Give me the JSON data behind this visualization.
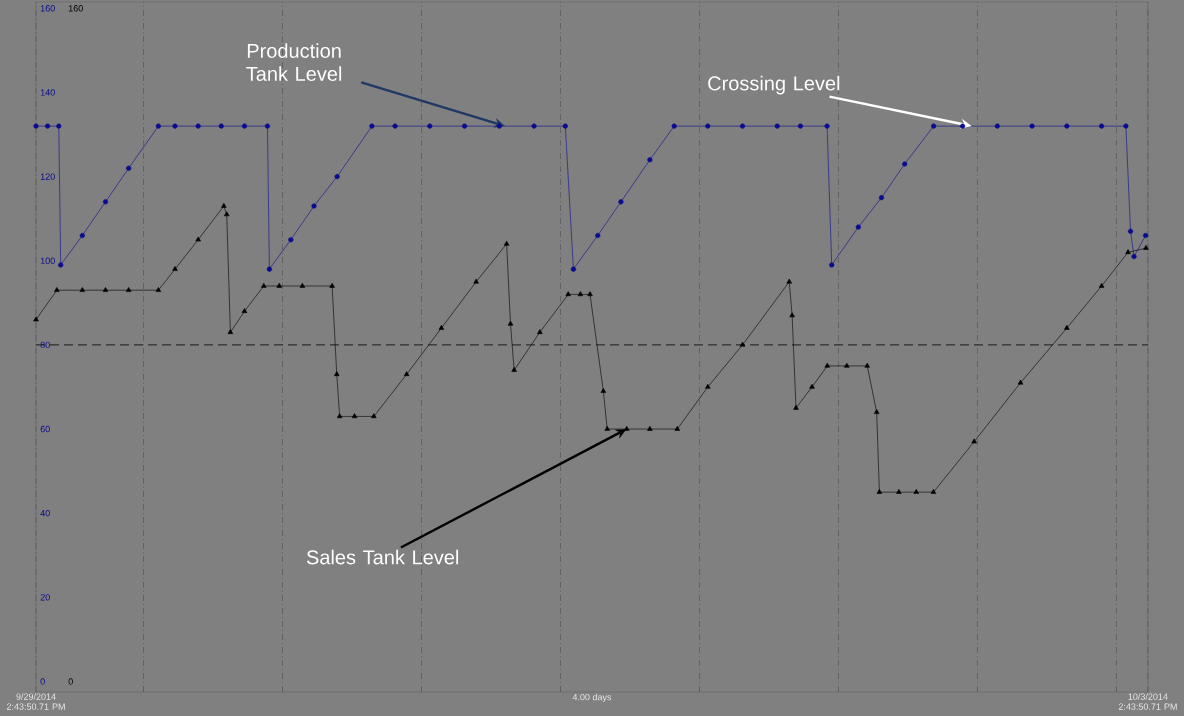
{
  "chart_data": {
    "type": "line",
    "x": [
      "2014-09-29T14:43",
      "2014-09-29T15:43",
      "2014-09-29T16:41",
      "2014-09-29T16:51",
      "2014-09-29T18:43",
      "2014-09-29T20:43",
      "2014-09-29T22:43",
      "2014-09-30T01:17",
      "2014-09-30T02:43",
      "2014-09-30T04:43",
      "2014-09-30T06:43",
      "2014-09-30T08:43",
      "2014-09-30T10:42",
      "2014-09-30T10:52",
      "2014-09-30T12:43",
      "2014-09-30T14:43",
      "2014-09-30T16:43",
      "2014-09-30T19:43",
      "2014-09-30T21:43",
      "2014-10-01T00:43",
      "2014-10-01T03:43",
      "2014-10-01T06:43",
      "2014-10-01T09:43",
      "2014-10-01T12:25",
      "2014-10-01T13:07",
      "2014-10-01T15:13",
      "2014-10-01T17:13",
      "2014-10-01T19:43",
      "2014-10-01T21:49",
      "2014-10-02T00:43",
      "2014-10-02T03:43",
      "2014-10-02T06:43",
      "2014-10-02T08:43",
      "2014-10-02T11:01",
      "2014-10-02T11:25",
      "2014-10-02T13:43",
      "2014-10-02T15:43",
      "2014-10-02T17:43",
      "2014-10-02T20:13",
      "2014-10-02T22:43",
      "2014-10-03T01:43",
      "2014-10-03T04:43",
      "2014-10-03T07:43",
      "2014-10-03T10:43",
      "2014-10-03T12:49",
      "2014-10-03T13:13",
      "2014-10-03T13:31",
      "2014-10-03T14:31"
    ],
    "series": [
      {
        "color": "#0b0b8f",
        "marker": "circle",
        "line_style": "solid",
        "values": [
          132,
          132,
          132,
          99,
          106,
          114,
          122,
          132,
          132,
          132,
          132,
          132,
          132,
          98,
          105,
          113,
          120,
          132,
          132,
          132,
          132,
          132,
          132,
          132,
          98,
          106,
          114,
          124,
          132,
          132,
          132,
          132,
          132,
          132,
          99,
          108,
          115,
          123,
          132,
          132,
          132,
          132,
          132,
          132,
          132,
          107,
          101,
          106
        ]
      },
      {
        "color": "#000000",
        "marker": "triangle",
        "line_style": "solid",
        "axis": "y2",
        "x": [
          "2014-09-29T14:43",
          "2014-09-29T16:31",
          "2014-09-29T18:43",
          "2014-09-29T20:43",
          "2014-09-29T22:43",
          "2014-09-30T01:17",
          "2014-09-30T02:43",
          "2014-09-30T04:43",
          "2014-09-30T06:56",
          "2014-09-30T07:11",
          "2014-09-30T07:30",
          "2014-09-30T08:43",
          "2014-09-30T10:23",
          "2014-09-30T11:43",
          "2014-09-30T13:43",
          "2014-09-30T16:17",
          "2014-09-30T16:41",
          "2014-09-30T16:56",
          "2014-09-30T18:13",
          "2014-09-30T19:53",
          "2014-09-30T22:43",
          "2014-10-01T01:43",
          "2014-10-01T04:43",
          "2014-10-01T07:21",
          "2014-10-01T07:41",
          "2014-10-01T08:00",
          "2014-10-01T10:13",
          "2014-10-01T12:40",
          "2014-10-01T13:43",
          "2014-10-01T14:33",
          "2014-10-01T15:42",
          "2014-10-01T16:02",
          "2014-10-01T17:43",
          "2014-10-01T19:43",
          "2014-10-01T22:05",
          "2014-10-02T00:43",
          "2014-10-02T03:43",
          "2014-10-02T07:45",
          "2014-10-02T08:00",
          "2014-10-02T08:20",
          "2014-10-02T09:43",
          "2014-10-02T11:02",
          "2014-10-02T12:43",
          "2014-10-02T14:29",
          "2014-10-02T15:18",
          "2014-10-02T15:32",
          "2014-10-02T17:13",
          "2014-10-02T18:43",
          "2014-10-02T20:12",
          "2014-10-02T23:43",
          "2014-10-03T03:43",
          "2014-10-03T07:43",
          "2014-10-03T10:43",
          "2014-10-03T13:00",
          "2014-10-03T14:33"
        ],
        "values": [
          86,
          93,
          93,
          93,
          93,
          93,
          98,
          105,
          113,
          111,
          83,
          88,
          94,
          94,
          94,
          94,
          73,
          63,
          63,
          63,
          73,
          84,
          95,
          104,
          85,
          74,
          83,
          92,
          92,
          92,
          69,
          60,
          60,
          60,
          60,
          70,
          80,
          95,
          87,
          65,
          70,
          75,
          75,
          75,
          64,
          45,
          45,
          45,
          45,
          57,
          71,
          84,
          94,
          102,
          103
        ]
      }
    ],
    "xlim": [
      "2014-09-29T14:43",
      "2014-10-03T14:43"
    ],
    "xticks": [
      {
        "value": "2014-09-29T14:43",
        "label": "9/29/2014 2:43:50.71 PM"
      },
      {
        "value": "2014-09-30T00:00",
        "label": null
      },
      {
        "value": "2014-09-30T12:00",
        "label": null
      },
      {
        "value": "2014-10-01T00:00",
        "label": null
      },
      {
        "value": "2014-10-01T12:00",
        "label": null
      },
      {
        "value": "2014-10-02T00:00",
        "label": null
      },
      {
        "value": "2014-10-02T12:00",
        "label": null
      },
      {
        "value": "2014-10-03T00:00",
        "label": null
      },
      {
        "value": "2014-10-03T12:00",
        "label": null
      },
      {
        "value": "2014-10-03T14:43",
        "label": "10/3/2014 2:43:50.71 PM"
      }
    ],
    "xlabel": "4.00 days",
    "ylim": [
      -2.5,
      161.5
    ],
    "yticks": [
      0,
      20,
      40,
      60,
      80,
      100,
      120,
      140,
      160
    ],
    "y2lim": [
      -2.5,
      161.5
    ],
    "y2ticks": [
      0,
      160
    ],
    "grid": "x",
    "ref_lines": [
      {
        "axis": "y",
        "value": 80,
        "line_style": "dashed"
      }
    ],
    "annotations": [
      {
        "text": "Production Tank Level",
        "x": "2014-10-01T07:13",
        "y": 132
      },
      {
        "text": "Crossing Level",
        "x": "2014-10-02T23:31",
        "y": 132
      },
      {
        "text": "Sales Tank Level",
        "x": "2014-10-01T17:43",
        "y": 60
      }
    ]
  }
}
